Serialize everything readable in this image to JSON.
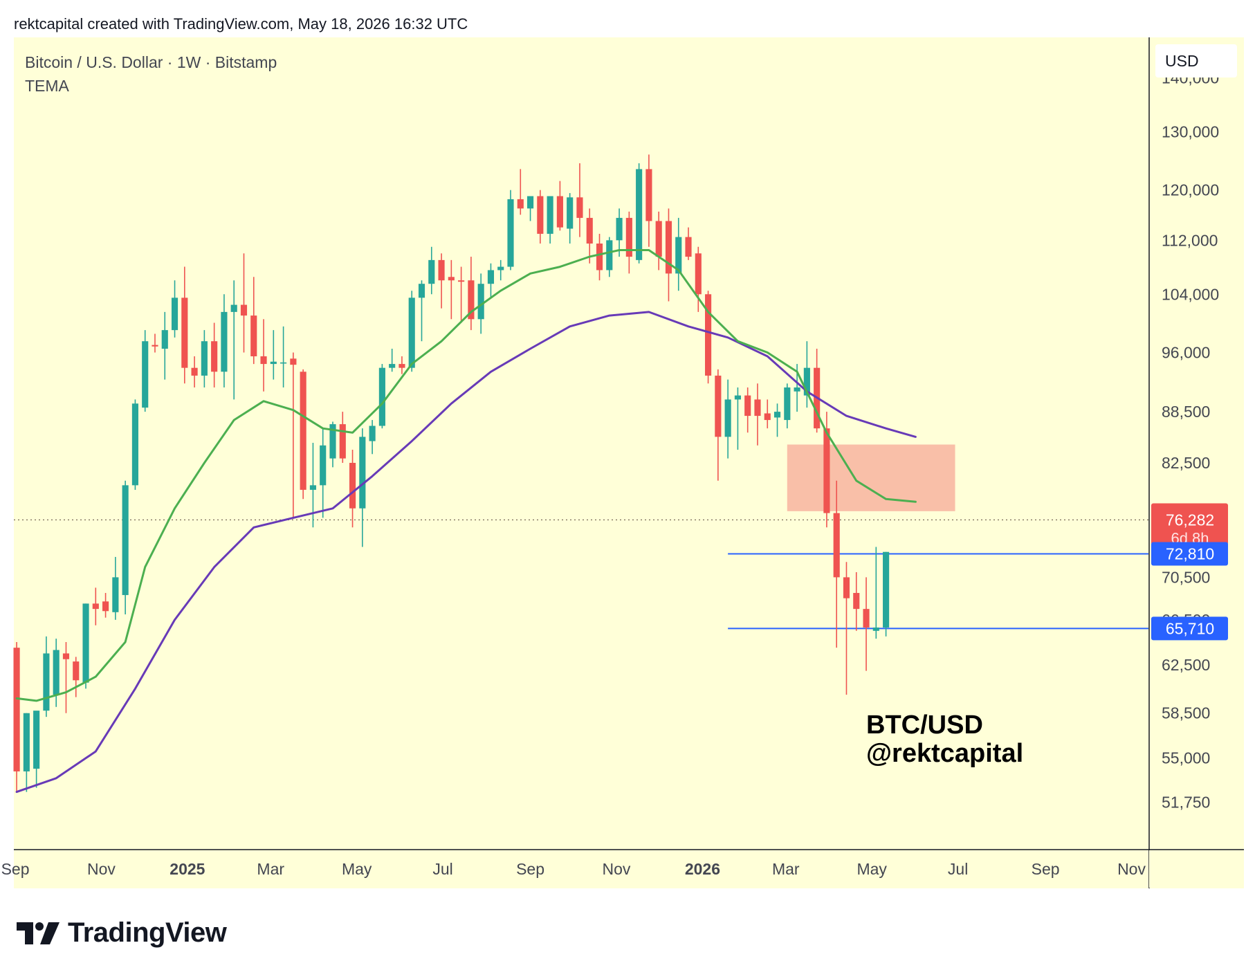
{
  "header": {
    "credit": "rektcapital created with TradingView.com, May 18, 2026 16:32 UTC"
  },
  "legend": {
    "symbol": "Bitcoin / U.S. Dollar · 1W · Bitstamp",
    "indicator": "TEMA"
  },
  "annotation": {
    "line1": "BTC/USD",
    "line2": "@rektcapital"
  },
  "footer": {
    "brand": "TradingView"
  },
  "colors": {
    "background": "#ffffd8",
    "up": "#26a69a",
    "down": "#ef5350",
    "tema_fast": "#4caf50",
    "tema_slow": "#673ab7",
    "level": "#2962ff",
    "zone": "#f8b4a0"
  },
  "chart_data": {
    "type": "candlestick",
    "currency": "USD",
    "y_scale": "log",
    "ylim": [
      48500,
      148000
    ],
    "y_ticks": [
      140000,
      130000,
      120000,
      112000,
      104000,
      96000,
      88500,
      82500,
      70500,
      66500,
      62500,
      58500,
      55000,
      51750
    ],
    "y_tick_labels": [
      "140,000",
      "130,000",
      "120,000",
      "112,000",
      "104,000",
      "96,000",
      "88,500",
      "82,500",
      "70,500",
      "66,500",
      "62,500",
      "58,500",
      "55,000",
      "51,750"
    ],
    "x_ticks": [
      {
        "label": "Sep",
        "date": "2024-09-01",
        "bold": false
      },
      {
        "label": "Nov",
        "date": "2024-11-01",
        "bold": false
      },
      {
        "label": "2025",
        "date": "2025-01-01",
        "bold": true
      },
      {
        "label": "Mar",
        "date": "2025-03-01",
        "bold": false
      },
      {
        "label": "May",
        "date": "2025-05-01",
        "bold": false
      },
      {
        "label": "Jul",
        "date": "2025-07-01",
        "bold": false
      },
      {
        "label": "Sep",
        "date": "2025-09-01",
        "bold": false
      },
      {
        "label": "Nov",
        "date": "2025-11-01",
        "bold": false
      },
      {
        "label": "2026",
        "date": "2026-01-01",
        "bold": true
      },
      {
        "label": "Mar",
        "date": "2026-03-01",
        "bold": false
      },
      {
        "label": "May",
        "date": "2026-05-01",
        "bold": false
      },
      {
        "label": "Jul",
        "date": "2026-07-01",
        "bold": false
      },
      {
        "label": "Sep",
        "date": "2026-09-01",
        "bold": false
      },
      {
        "label": "Nov",
        "date": "2026-11-01",
        "bold": false
      }
    ],
    "xlim": [
      "2024-08-31",
      "2026-11-13"
    ],
    "candles": [
      {
        "date": "2024-09-02",
        "o": 64000,
        "h": 64500,
        "l": 52500,
        "c": 54000
      },
      {
        "date": "2024-09-09",
        "o": 54000,
        "h": 58500,
        "l": 52500,
        "c": 58500
      },
      {
        "date": "2024-09-16",
        "o": 54200,
        "h": 58600,
        "l": 52800,
        "c": 58700
      },
      {
        "date": "2024-09-23",
        "o": 58700,
        "h": 65000,
        "l": 58200,
        "c": 63500
      },
      {
        "date": "2024-09-30",
        "o": 60000,
        "h": 64800,
        "l": 59000,
        "c": 63800
      },
      {
        "date": "2024-10-07",
        "o": 63500,
        "h": 64500,
        "l": 58500,
        "c": 63000
      },
      {
        "date": "2024-10-14",
        "o": 62800,
        "h": 63200,
        "l": 59800,
        "c": 61200
      },
      {
        "date": "2024-10-21",
        "o": 61000,
        "h": 68000,
        "l": 60500,
        "c": 68000
      },
      {
        "date": "2024-10-28",
        "o": 68000,
        "h": 69500,
        "l": 66000,
        "c": 67500
      },
      {
        "date": "2024-11-04",
        "o": 68200,
        "h": 69000,
        "l": 66700,
        "c": 67300
      },
      {
        "date": "2024-11-11",
        "o": 67200,
        "h": 72500,
        "l": 66500,
        "c": 70500
      },
      {
        "date": "2024-11-18",
        "o": 68800,
        "h": 80500,
        "l": 67000,
        "c": 80000
      },
      {
        "date": "2024-11-25",
        "o": 80000,
        "h": 90000,
        "l": 79500,
        "c": 89500
      },
      {
        "date": "2024-12-02",
        "o": 89000,
        "h": 99000,
        "l": 88500,
        "c": 97500
      },
      {
        "date": "2024-12-09",
        "o": 97000,
        "h": 98500,
        "l": 96000,
        "c": 96800
      },
      {
        "date": "2024-12-16",
        "o": 96500,
        "h": 101500,
        "l": 92500,
        "c": 99000
      },
      {
        "date": "2024-12-23",
        "o": 99000,
        "h": 106000,
        "l": 98000,
        "c": 103500
      },
      {
        "date": "2024-12-30",
        "o": 103500,
        "h": 108000,
        "l": 92000,
        "c": 94000
      },
      {
        "date": "2025-01-06",
        "o": 94000,
        "h": 95500,
        "l": 91500,
        "c": 93000
      },
      {
        "date": "2025-01-13",
        "o": 93000,
        "h": 99000,
        "l": 91500,
        "c": 97500
      },
      {
        "date": "2025-01-20",
        "o": 97500,
        "h": 100000,
        "l": 91500,
        "c": 93500
      },
      {
        "date": "2025-01-27",
        "o": 93500,
        "h": 104000,
        "l": 91500,
        "c": 101500
      },
      {
        "date": "2025-02-03",
        "o": 101500,
        "h": 106000,
        "l": 90000,
        "c": 102500
      },
      {
        "date": "2025-02-10",
        "o": 102500,
        "h": 110000,
        "l": 96000,
        "c": 101000
      },
      {
        "date": "2025-02-17",
        "o": 101000,
        "h": 106500,
        "l": 94500,
        "c": 95500
      },
      {
        "date": "2025-02-24",
        "o": 95500,
        "h": 100500,
        "l": 91000,
        "c": 94500
      },
      {
        "date": "2025-03-03",
        "o": 94500,
        "h": 99000,
        "l": 92500,
        "c": 94800
      },
      {
        "date": "2025-03-10",
        "o": 94600,
        "h": 99500,
        "l": 91500,
        "c": 94700
      },
      {
        "date": "2025-03-17",
        "o": 95200,
        "h": 96000,
        "l": 76500,
        "c": 94400
      },
      {
        "date": "2025-03-24",
        "o": 93500,
        "h": 93800,
        "l": 78500,
        "c": 79500
      },
      {
        "date": "2025-03-31",
        "o": 79500,
        "h": 84800,
        "l": 75500,
        "c": 80000
      },
      {
        "date": "2025-04-07",
        "o": 80000,
        "h": 86500,
        "l": 76500,
        "c": 84500
      },
      {
        "date": "2025-04-14",
        "o": 83000,
        "h": 87300,
        "l": 82000,
        "c": 87000
      },
      {
        "date": "2025-04-21",
        "o": 87000,
        "h": 88500,
        "l": 82500,
        "c": 83000
      },
      {
        "date": "2025-04-28",
        "o": 82500,
        "h": 84000,
        "l": 75500,
        "c": 77500
      },
      {
        "date": "2025-05-05",
        "o": 77500,
        "h": 86500,
        "l": 73500,
        "c": 85500
      },
      {
        "date": "2025-05-12",
        "o": 85000,
        "h": 87500,
        "l": 83500,
        "c": 86800
      },
      {
        "date": "2025-05-19",
        "o": 86800,
        "h": 94500,
        "l": 86500,
        "c": 94000
      },
      {
        "date": "2025-05-26",
        "o": 94000,
        "h": 96500,
        "l": 93500,
        "c": 94500
      },
      {
        "date": "2025-06-02",
        "o": 94500,
        "h": 95500,
        "l": 93200,
        "c": 94000
      },
      {
        "date": "2025-06-09",
        "o": 94000,
        "h": 104500,
        "l": 93500,
        "c": 103500
      },
      {
        "date": "2025-06-16",
        "o": 103500,
        "h": 106000,
        "l": 97500,
        "c": 105500
      },
      {
        "date": "2025-06-23",
        "o": 105500,
        "h": 111000,
        "l": 104000,
        "c": 109000
      },
      {
        "date": "2025-06-30",
        "o": 109000,
        "h": 110000,
        "l": 102000,
        "c": 106000
      },
      {
        "date": "2025-07-07",
        "o": 106500,
        "h": 109000,
        "l": 100500,
        "c": 106000
      },
      {
        "date": "2025-07-14",
        "o": 106000,
        "h": 108000,
        "l": 100000,
        "c": 105800
      },
      {
        "date": "2025-07-21",
        "o": 106000,
        "h": 109500,
        "l": 99000,
        "c": 100500
      },
      {
        "date": "2025-07-28",
        "o": 100500,
        "h": 107000,
        "l": 98500,
        "c": 105500
      },
      {
        "date": "2025-08-04",
        "o": 105500,
        "h": 108500,
        "l": 103500,
        "c": 107500
      },
      {
        "date": "2025-08-11",
        "o": 107500,
        "h": 109000,
        "l": 106000,
        "c": 108000
      },
      {
        "date": "2025-08-18",
        "o": 108000,
        "h": 120000,
        "l": 107500,
        "c": 118500
      },
      {
        "date": "2025-08-25",
        "o": 118500,
        "h": 123500,
        "l": 116000,
        "c": 117000
      },
      {
        "date": "2025-09-01",
        "o": 117000,
        "h": 119000,
        "l": 115000,
        "c": 119000
      },
      {
        "date": "2025-09-08",
        "o": 119000,
        "h": 120000,
        "l": 111500,
        "c": 113000
      },
      {
        "date": "2025-09-15",
        "o": 113000,
        "h": 119000,
        "l": 111500,
        "c": 119000
      },
      {
        "date": "2025-09-22",
        "o": 119000,
        "h": 121500,
        "l": 113500,
        "c": 114000
      },
      {
        "date": "2025-09-29",
        "o": 113800,
        "h": 119500,
        "l": 111500,
        "c": 118800
      },
      {
        "date": "2025-10-06",
        "o": 118800,
        "h": 124500,
        "l": 112500,
        "c": 115500
      },
      {
        "date": "2025-10-13",
        "o": 115500,
        "h": 117000,
        "l": 108500,
        "c": 111500
      },
      {
        "date": "2025-10-20",
        "o": 111500,
        "h": 113000,
        "l": 106000,
        "c": 107500
      },
      {
        "date": "2025-10-27",
        "o": 107500,
        "h": 112500,
        "l": 106500,
        "c": 112000
      },
      {
        "date": "2025-11-03",
        "o": 112000,
        "h": 117000,
        "l": 109500,
        "c": 115500
      },
      {
        "date": "2025-11-10",
        "o": 115500,
        "h": 116500,
        "l": 107000,
        "c": 109500
      },
      {
        "date": "2025-11-17",
        "o": 109000,
        "h": 124500,
        "l": 108500,
        "c": 123500
      },
      {
        "date": "2025-11-24",
        "o": 123500,
        "h": 126000,
        "l": 111000,
        "c": 115000
      },
      {
        "date": "2025-12-01",
        "o": 115000,
        "h": 116500,
        "l": 107500,
        "c": 109500
      },
      {
        "date": "2025-12-08",
        "o": 115000,
        "h": 117000,
        "l": 103000,
        "c": 107000
      },
      {
        "date": "2025-12-15",
        "o": 107000,
        "h": 115500,
        "l": 104500,
        "c": 112500
      },
      {
        "date": "2025-12-22",
        "o": 112500,
        "h": 114000,
        "l": 109000,
        "c": 109500
      },
      {
        "date": "2025-12-29",
        "o": 110000,
        "h": 111000,
        "l": 101500,
        "c": 104000
      },
      {
        "date": "2026-01-05",
        "o": 104000,
        "h": 104500,
        "l": 92000,
        "c": 93000
      },
      {
        "date": "2026-01-12",
        "o": 93000,
        "h": 93800,
        "l": 80500,
        "c": 85500
      },
      {
        "date": "2026-01-19",
        "o": 85500,
        "h": 92500,
        "l": 83000,
        "c": 90000
      },
      {
        "date": "2026-01-26",
        "o": 90000,
        "h": 91500,
        "l": 84000,
        "c": 90500
      },
      {
        "date": "2026-02-02",
        "o": 90500,
        "h": 91500,
        "l": 86000,
        "c": 88000
      },
      {
        "date": "2026-02-09",
        "o": 90000,
        "h": 92000,
        "l": 84500,
        "c": 88000
      },
      {
        "date": "2026-02-16",
        "o": 88300,
        "h": 90000,
        "l": 86500,
        "c": 87500
      },
      {
        "date": "2026-02-23",
        "o": 87800,
        "h": 89500,
        "l": 85500,
        "c": 88500
      },
      {
        "date": "2026-03-02",
        "o": 87500,
        "h": 92000,
        "l": 86500,
        "c": 91500
      },
      {
        "date": "2026-03-09",
        "o": 91000,
        "h": 94500,
        "l": 88500,
        "c": 91500
      },
      {
        "date": "2026-03-16",
        "o": 90500,
        "h": 97500,
        "l": 89000,
        "c": 94000
      },
      {
        "date": "2026-03-23",
        "o": 94000,
        "h": 96500,
        "l": 86000,
        "c": 86500
      },
      {
        "date": "2026-03-30",
        "o": 86500,
        "h": 88500,
        "l": 75500,
        "c": 77000
      },
      {
        "date": "2026-04-06",
        "o": 77000,
        "h": 80500,
        "l": 64000,
        "c": 70500
      },
      {
        "date": "2026-04-13",
        "o": 70500,
        "h": 72000,
        "l": 60000,
        "c": 68500
      },
      {
        "date": "2026-04-20",
        "o": 69000,
        "h": 71000,
        "l": 65500,
        "c": 67500
      },
      {
        "date": "2026-04-27",
        "o": 67500,
        "h": 70500,
        "l": 62000,
        "c": 65800
      },
      {
        "date": "2026-05-04",
        "o": 65500,
        "h": 73500,
        "l": 64800,
        "c": 65800
      },
      {
        "date": "2026-05-11",
        "o": 65800,
        "h": 73000,
        "l": 65000,
        "c": 73000
      }
    ],
    "tema_fast": [
      [
        "2024-09-02",
        59700
      ],
      [
        "2024-09-16",
        59500
      ],
      [
        "2024-10-07",
        60200
      ],
      [
        "2024-10-28",
        61500
      ],
      [
        "2024-11-18",
        64500
      ],
      [
        "2024-12-02",
        71500
      ],
      [
        "2024-12-23",
        77500
      ],
      [
        "2025-01-13",
        82500
      ],
      [
        "2025-02-03",
        87500
      ],
      [
        "2025-02-24",
        89800
      ],
      [
        "2025-03-17",
        88700
      ],
      [
        "2025-04-07",
        86500
      ],
      [
        "2025-04-28",
        86000
      ],
      [
        "2025-05-19",
        89500
      ],
      [
        "2025-06-09",
        94500
      ],
      [
        "2025-06-30",
        97500
      ],
      [
        "2025-07-21",
        101500
      ],
      [
        "2025-08-11",
        104500
      ],
      [
        "2025-09-01",
        107000
      ],
      [
        "2025-09-22",
        108000
      ],
      [
        "2025-10-13",
        109500
      ],
      [
        "2025-11-03",
        110500
      ],
      [
        "2025-11-24",
        110500
      ],
      [
        "2025-12-15",
        107500
      ],
      [
        "2026-01-05",
        101500
      ],
      [
        "2026-01-26",
        97500
      ],
      [
        "2026-02-16",
        96000
      ],
      [
        "2026-03-09",
        93500
      ],
      [
        "2026-03-30",
        86000
      ],
      [
        "2026-04-20",
        80500
      ],
      [
        "2026-05-11",
        78500
      ],
      [
        "2026-06-01",
        78200
      ]
    ],
    "tema_slow": [
      [
        "2024-09-02",
        52500
      ],
      [
        "2024-09-30",
        53500
      ],
      [
        "2024-10-28",
        55500
      ],
      [
        "2024-11-25",
        60500
      ],
      [
        "2024-12-23",
        66500
      ],
      [
        "2025-01-20",
        71500
      ],
      [
        "2025-02-17",
        75500
      ],
      [
        "2025-03-17",
        76500
      ],
      [
        "2025-04-14",
        77500
      ],
      [
        "2025-05-12",
        81000
      ],
      [
        "2025-06-09",
        85000
      ],
      [
        "2025-07-07",
        89500
      ],
      [
        "2025-08-04",
        93500
      ],
      [
        "2025-09-01",
        96500
      ],
      [
        "2025-09-29",
        99500
      ],
      [
        "2025-10-27",
        101000
      ],
      [
        "2025-11-24",
        101500
      ],
      [
        "2025-12-22",
        99500
      ],
      [
        "2026-01-19",
        98000
      ],
      [
        "2026-02-16",
        95500
      ],
      [
        "2026-03-16",
        91000
      ],
      [
        "2026-04-13",
        88000
      ],
      [
        "2026-05-11",
        86500
      ],
      [
        "2026-06-01",
        85500
      ]
    ],
    "zone": {
      "x0": "2026-03-02",
      "x1": "2026-06-29",
      "y_low": 77200,
      "y_high": 84600
    },
    "levels": [
      {
        "value": 72810,
        "label": "72,810",
        "x0": "2026-01-19"
      },
      {
        "value": 65710,
        "label": "65,710",
        "x0": "2026-01-19"
      }
    ],
    "current_price": {
      "value": 76282,
      "label": "76,282",
      "countdown": "6d 8h"
    }
  }
}
